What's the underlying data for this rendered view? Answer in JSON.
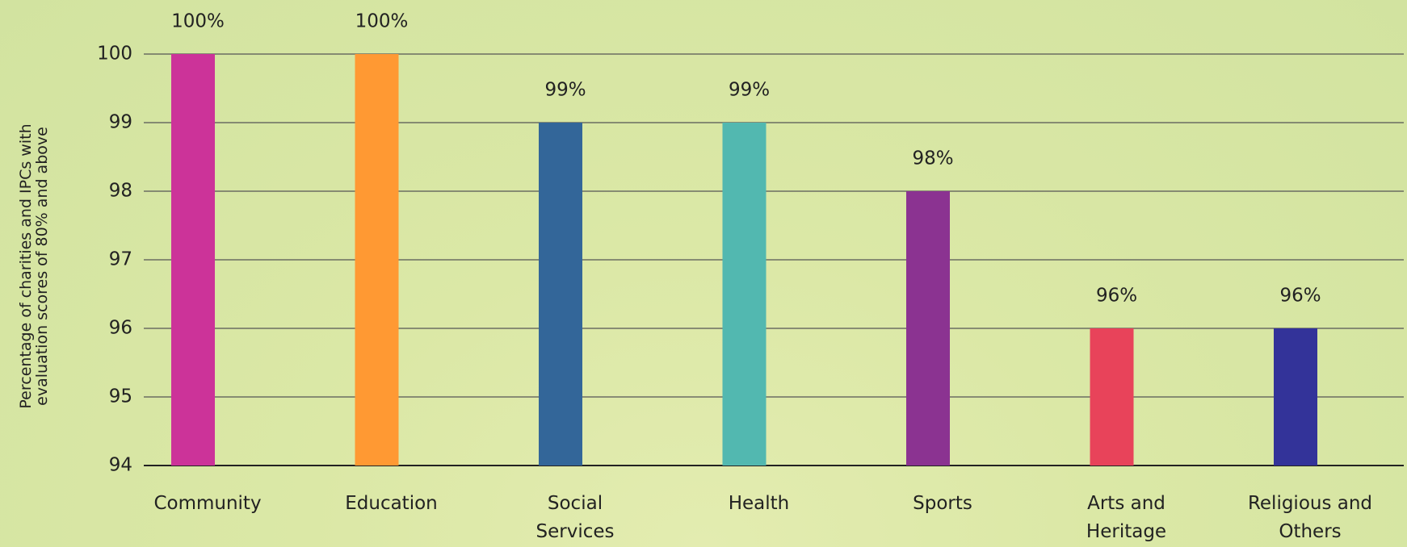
{
  "chart_data": {
    "type": "bar",
    "y_label": "Percentage of charities and IPCs with evaluation scores of 80% and above",
    "categories": [
      "Community",
      "Education",
      "Social Services",
      "Health",
      "Sports",
      "Arts and Heritage",
      "Religious and Others"
    ],
    "values": [
      100,
      100,
      99,
      99,
      98,
      96,
      96
    ],
    "value_labels": [
      "100%",
      "100%",
      "99%",
      "99%",
      "98%",
      "96%",
      "96%"
    ],
    "colors": [
      "#cc3399",
      "#ff9933",
      "#336699",
      "#52b8b0",
      "#8b3391",
      "#e8435a",
      "#333399"
    ],
    "ylim": [
      94,
      100
    ],
    "yticks": [
      94,
      95,
      96,
      97,
      98,
      99,
      100
    ],
    "grid": true
  }
}
